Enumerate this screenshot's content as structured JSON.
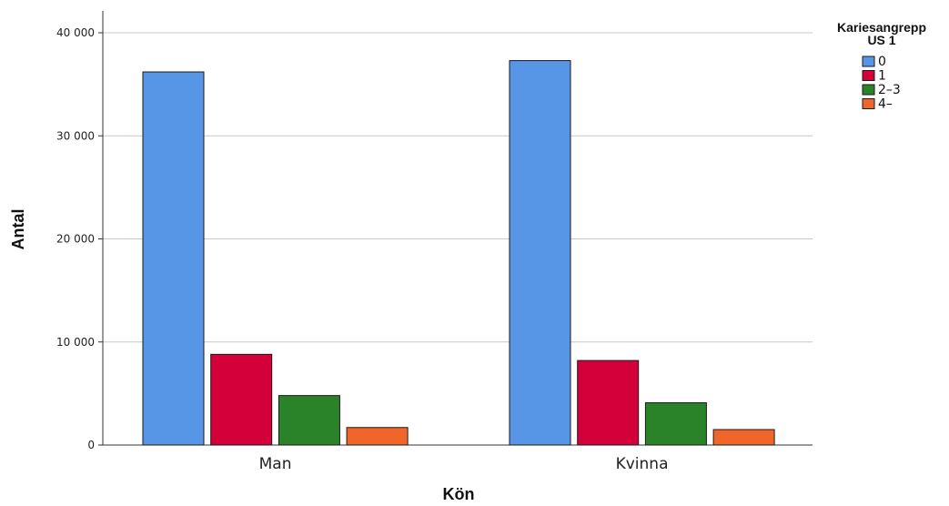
{
  "chart_data": {
    "type": "bar",
    "xlabel": "Kön",
    "ylabel": "Antal",
    "categories": [
      "Man",
      "Kvinna"
    ],
    "ylim": [
      0,
      40000
    ],
    "yticks": [
      0,
      10000,
      20000,
      30000,
      40000
    ],
    "ytick_labels": [
      "0",
      "10 000",
      "20 000",
      "30 000",
      "40 000"
    ],
    "grid": true,
    "legend": {
      "title_line1": "Kariesangrepp",
      "title_line2": "US 1",
      "placement": "top-right"
    },
    "series": [
      {
        "name": "0",
        "color": "#5796e6",
        "values": [
          36200,
          37300
        ]
      },
      {
        "name": "1",
        "color": "#d4003a",
        "values": [
          8800,
          8200
        ]
      },
      {
        "name": "2–3",
        "color": "#2a8229",
        "values": [
          4800,
          4100
        ]
      },
      {
        "name": "4–",
        "color": "#f0662a",
        "values": [
          1700,
          1500
        ]
      }
    ]
  }
}
